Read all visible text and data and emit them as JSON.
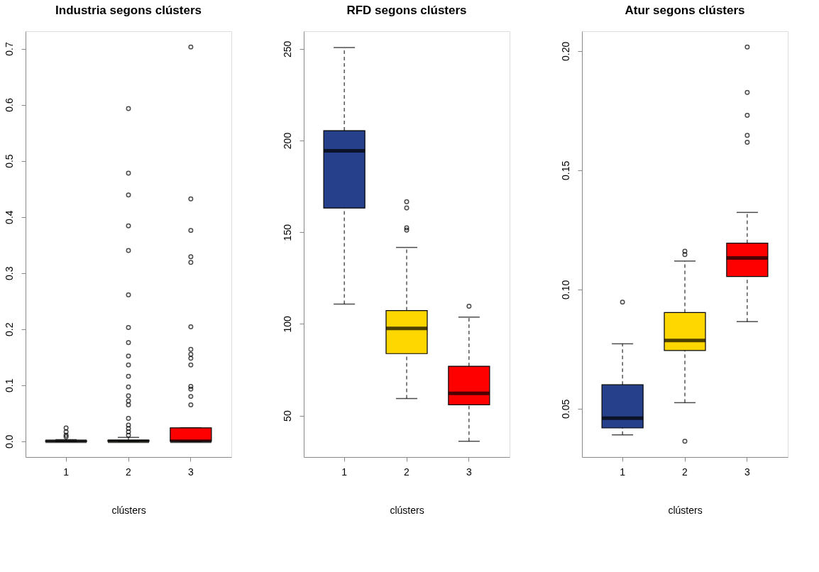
{
  "chart_data": [
    {
      "type": "box",
      "title": "Industria segons clústers",
      "xlabel": "clústers",
      "categories": [
        "1",
        "2",
        "3"
      ],
      "colors": [
        "#27408b",
        "#ffd700",
        "#ff0000"
      ],
      "ylim": [
        -0.028,
        0.731
      ],
      "yticks": [
        {
          "value": 0,
          "label": "0.0"
        },
        0.1,
        0.2,
        0.3,
        0.4,
        0.5,
        0.6,
        0.7
      ],
      "boxes": [
        {
          "low": 0,
          "q1": 0,
          "median": 0,
          "q3": 0.001,
          "high": 0.003,
          "outliers": [
            0.024,
            0.017,
            0.011,
            0.008
          ]
        },
        {
          "low": 0,
          "q1": 0,
          "median": 0,
          "q3": 0.002,
          "high": 0.007,
          "outliers": [
            0.593,
            0.478,
            0.439,
            0.384,
            0.34,
            0.261,
            0.203,
            0.176,
            0.152,
            0.136,
            0.116,
            0.097,
            0.081,
            0.072,
            0.065,
            0.041,
            0.029,
            0.023,
            0.017,
            0.011
          ]
        },
        {
          "low": 0,
          "q1": 0,
          "median": 0,
          "q3": 0.024,
          "high": 0.024,
          "outliers": [
            0.703,
            0.432,
            0.376,
            0.329,
            0.319,
            0.204,
            0.164,
            0.155,
            0.148,
            0.136,
            0.098,
            0.093,
            0.08,
            0.065
          ]
        }
      ]
    },
    {
      "type": "box",
      "title": "RFD segons clústers",
      "xlabel": "clústers",
      "categories": [
        "1",
        "2",
        "3"
      ],
      "colors": [
        "#27408b",
        "#ffd700",
        "#ff0000"
      ],
      "ylim": [
        27.4,
        259.6
      ],
      "yticks": [
        50,
        100,
        150,
        200,
        250
      ],
      "boxes": [
        {
          "low": 110.8,
          "q1": 163.2,
          "median": 194.4,
          "q3": 205.4,
          "high": 250.7
        },
        {
          "low": 59.3,
          "q1": 83.8,
          "median": 97.5,
          "q3": 107.3,
          "high": 141.7,
          "outliers": [
            166.6,
            163.2,
            152.4,
            151.1
          ]
        },
        {
          "low": 36.0,
          "q1": 55.9,
          "median": 62.1,
          "q3": 76.9,
          "high": 103.7,
          "outliers": [
            109.6
          ]
        }
      ]
    },
    {
      "type": "box",
      "title": "Atur segons clústers",
      "xlabel": "clústers",
      "categories": [
        "1",
        "2",
        "3"
      ],
      "colors": [
        "#27408b",
        "#ffd700",
        "#ff0000"
      ],
      "ylim": [
        0.0297,
        0.2083
      ],
      "yticks": [
        0.05,
        {
          "value": 0.1,
          "label": "0.10"
        },
        0.15,
        {
          "value": 0.2,
          "label": "0.20"
        }
      ],
      "boxes": [
        {
          "low": 0.039,
          "q1": 0.0419,
          "median": 0.046,
          "q3": 0.06,
          "high": 0.0772,
          "outliers": [
            0.0947
          ]
        },
        {
          "low": 0.0525,
          "q1": 0.0744,
          "median": 0.0786,
          "q3": 0.0903,
          "high": 0.1119,
          "outliers": [
            0.116,
            0.1146,
            0.0363
          ]
        },
        {
          "low": 0.0865,
          "q1": 0.1054,
          "median": 0.1132,
          "q3": 0.1194,
          "high": 0.1323,
          "outliers": [
            0.2017,
            0.1826,
            0.173,
            0.1646,
            0.1617
          ]
        }
      ]
    }
  ]
}
